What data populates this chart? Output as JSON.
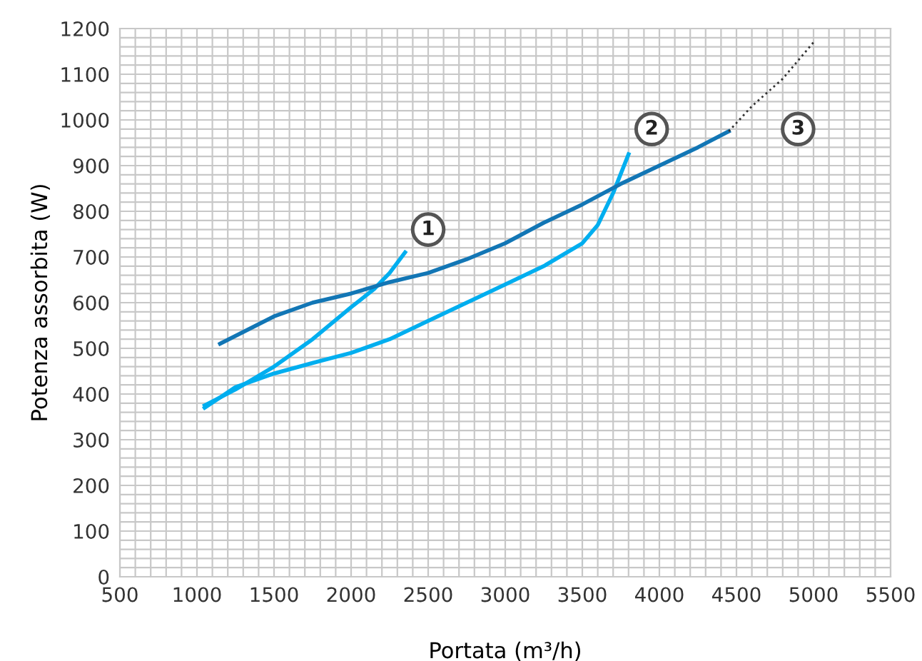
{
  "chart_data": {
    "type": "line",
    "xlabel": "Portata (m³/h)",
    "ylabel": "Potenza assorbita (W)",
    "xlim": [
      500,
      5500
    ],
    "ylim": [
      0,
      1200
    ],
    "xticks": [
      500,
      {
        "value": 600,
        "label": null
      },
      {
        "value": 700,
        "label": null
      },
      {
        "value": 800,
        "label": null
      },
      {
        "value": 900,
        "label": null
      },
      1000,
      {
        "value": 1100,
        "label": null
      },
      {
        "value": 1200,
        "label": null
      },
      {
        "value": 1300,
        "label": null
      },
      {
        "value": 1400,
        "label": null
      },
      1500,
      {
        "value": 1600,
        "label": null
      },
      {
        "value": 1700,
        "label": null
      },
      {
        "value": 1800,
        "label": null
      },
      {
        "value": 1900,
        "label": null
      },
      2000,
      {
        "value": 2100,
        "label": null
      },
      {
        "value": 2200,
        "label": null
      },
      {
        "value": 2300,
        "label": null
      },
      {
        "value": 2400,
        "label": null
      },
      2500,
      {
        "value": 2600,
        "label": null
      },
      {
        "value": 2700,
        "label": null
      },
      {
        "value": 2800,
        "label": null
      },
      {
        "value": 2900,
        "label": null
      },
      3000,
      {
        "value": 3100,
        "label": null
      },
      {
        "value": 3200,
        "label": null
      },
      {
        "value": 3300,
        "label": null
      },
      {
        "value": 3400,
        "label": null
      },
      3500,
      {
        "value": 3600,
        "label": null
      },
      {
        "value": 3700,
        "label": null
      },
      {
        "value": 3800,
        "label": null
      },
      {
        "value": 3900,
        "label": null
      },
      4000,
      {
        "value": 4100,
        "label": null
      },
      {
        "value": 4200,
        "label": null
      },
      {
        "value": 4300,
        "label": null
      },
      {
        "value": 4400,
        "label": null
      },
      4500,
      {
        "value": 4600,
        "label": null
      },
      {
        "value": 4700,
        "label": null
      },
      {
        "value": 4800,
        "label": null
      },
      {
        "value": 4900,
        "label": null
      },
      5000,
      {
        "value": 5100,
        "label": null
      },
      {
        "value": 5200,
        "label": null
      },
      {
        "value": 5300,
        "label": null
      },
      {
        "value": 5400,
        "label": null
      },
      5500
    ],
    "yticks": [
      0,
      {
        "value": 20,
        "label": null
      },
      {
        "value": 40,
        "label": null
      },
      {
        "value": 60,
        "label": null
      },
      {
        "value": 80,
        "label": null
      },
      100,
      {
        "value": 120,
        "label": null
      },
      {
        "value": 140,
        "label": null
      },
      {
        "value": 160,
        "label": null
      },
      {
        "value": 180,
        "label": null
      },
      200,
      {
        "value": 220,
        "label": null
      },
      {
        "value": 240,
        "label": null
      },
      {
        "value": 260,
        "label": null
      },
      {
        "value": 280,
        "label": null
      },
      300,
      {
        "value": 320,
        "label": null
      },
      {
        "value": 340,
        "label": null
      },
      {
        "value": 360,
        "label": null
      },
      {
        "value": 380,
        "label": null
      },
      400,
      {
        "value": 420,
        "label": null
      },
      {
        "value": 440,
        "label": null
      },
      {
        "value": 460,
        "label": null
      },
      {
        "value": 480,
        "label": null
      },
      500,
      {
        "value": 520,
        "label": null
      },
      {
        "value": 540,
        "label": null
      },
      {
        "value": 560,
        "label": null
      },
      {
        "value": 580,
        "label": null
      },
      600,
      {
        "value": 620,
        "label": null
      },
      {
        "value": 640,
        "label": null
      },
      {
        "value": 660,
        "label": null
      },
      {
        "value": 680,
        "label": null
      },
      700,
      {
        "value": 720,
        "label": null
      },
      {
        "value": 740,
        "label": null
      },
      {
        "value": 760,
        "label": null
      },
      {
        "value": 780,
        "label": null
      },
      800,
      {
        "value": 820,
        "label": null
      },
      {
        "value": 840,
        "label": null
      },
      {
        "value": 860,
        "label": null
      },
      {
        "value": 880,
        "label": null
      },
      900,
      {
        "value": 920,
        "label": null
      },
      {
        "value": 940,
        "label": null
      },
      {
        "value": 960,
        "label": null
      },
      {
        "value": 980,
        "label": null
      },
      1000,
      {
        "value": 1020,
        "label": null
      },
      {
        "value": 1040,
        "label": null
      },
      {
        "value": 1060,
        "label": null
      },
      {
        "value": 1080,
        "label": null
      },
      1100,
      {
        "value": 1120,
        "label": null
      },
      {
        "value": 1140,
        "label": null
      },
      {
        "value": 1160,
        "label": null
      },
      {
        "value": 1180,
        "label": null
      },
      1200
    ],
    "grid": true,
    "legend": false,
    "marker": "none",
    "series": [
      {
        "color": "#00aeef",
        "line_style": "solid",
        "x": [
          1050,
          1250,
          1500,
          1750,
          2000,
          2150,
          2250,
          2350
        ],
        "values": [
          375,
          410,
          460,
          520,
          590,
          630,
          665,
          710
        ]
      },
      {
        "color": "#00aeef",
        "line_style": "solid",
        "x": [
          1050,
          1250,
          1500,
          1750,
          2000,
          2250,
          2500,
          2750,
          3000,
          3250,
          3500,
          3600,
          3700,
          3800
        ],
        "values": [
          370,
          415,
          445,
          468,
          490,
          520,
          560,
          600,
          640,
          680,
          730,
          770,
          840,
          925
        ]
      },
      {
        "color": "#1276b5",
        "line_style": "solid",
        "x": [
          1150,
          1500,
          1750,
          2000,
          2250,
          2500,
          2750,
          3000,
          3250,
          3500,
          3750,
          4000,
          4250,
          4450
        ],
        "values": [
          510,
          570,
          600,
          620,
          645,
          665,
          695,
          730,
          775,
          815,
          860,
          900,
          940,
          975
        ]
      },
      {
        "color": "#333333",
        "line_style": "dotted",
        "x": [
          4450,
          4600,
          4800,
          5000
        ],
        "values": [
          975,
          1030,
          1090,
          1170
        ]
      }
    ],
    "annotations": [
      {
        "text": "1",
        "x": 2500,
        "y": 760
      },
      {
        "text": "2",
        "x": 3950,
        "y": 980
      },
      {
        "text": "3",
        "x": 4900,
        "y": 980
      }
    ]
  }
}
